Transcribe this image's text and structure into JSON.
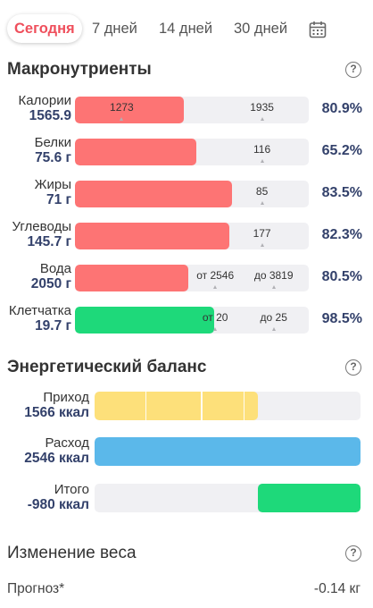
{
  "tabs": [
    {
      "label": "Сегодня",
      "active": true
    },
    {
      "label": "7 дней",
      "active": false
    },
    {
      "label": "14 дней",
      "active": false
    },
    {
      "label": "30 дней",
      "active": false
    }
  ],
  "macros": {
    "title": "Макронутриенты",
    "help": "?",
    "rows": [
      {
        "name": "Калории",
        "value": "1565.9",
        "fill_fraction": 0.465,
        "color": "#fd7474",
        "markers": [
          "1273",
          "1935"
        ],
        "percent": "80.9%"
      },
      {
        "name": "Белки",
        "value": "75.6 г",
        "fill_fraction": 0.52,
        "color": "#fd7474",
        "markers": [
          "",
          "116"
        ],
        "percent": "65.2%"
      },
      {
        "name": "Жиры",
        "value": "71 г",
        "fill_fraction": 0.67,
        "color": "#fd7474",
        "markers": [
          "",
          "85"
        ],
        "percent": "83.5%"
      },
      {
        "name": "Углеводы",
        "value": "145.7 г",
        "fill_fraction": 0.66,
        "color": "#fd7474",
        "markers": [
          "",
          "177"
        ],
        "percent": "82.3%"
      },
      {
        "name": "Вода",
        "value": "2050 г",
        "fill_fraction": 0.485,
        "color": "#fd7474",
        "markers": [
          "от 2546",
          "до 3819"
        ],
        "percent": "80.5%"
      },
      {
        "name": "Клетчатка",
        "value": "19.7 г",
        "fill_fraction": 0.595,
        "color": "#1ed97a",
        "markers": [
          "от 20",
          "до 25"
        ],
        "percent": "98.5%"
      }
    ]
  },
  "energy": {
    "title": "Энергетический баланс",
    "help": "?",
    "rows": [
      {
        "name": "Приход",
        "value": "1566 ккал",
        "color": "#fde07a",
        "start_fraction": 0.0,
        "fill_fraction": 0.615
      },
      {
        "name": "Расход",
        "value": "2546 ккал",
        "color": "#5bb8ea",
        "start_fraction": 0.0,
        "fill_fraction": 1.0
      },
      {
        "name": "Итого",
        "value": "-980 ккал",
        "color": "#1ed97a",
        "start_fraction": 0.615,
        "fill_fraction": 0.385
      }
    ]
  },
  "weight": {
    "title": "Изменение веса",
    "help": "?",
    "forecast_label": "Прогноз*",
    "forecast_value": "-0.14 кг"
  }
}
